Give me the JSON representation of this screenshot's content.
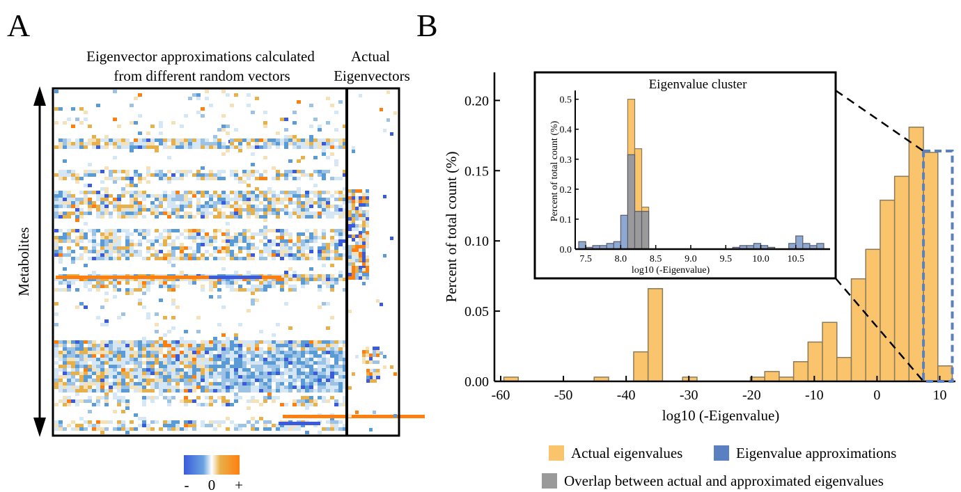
{
  "panel_a": {
    "letter": "A",
    "title_line1": "Eigenvector approximations calculated",
    "title_line2": "from different random vectors",
    "actual_line1": "Actual",
    "actual_line2": "Eigenvectors",
    "y_label": "Metabolites",
    "colorbar_minus": "-",
    "colorbar_zero": "0",
    "colorbar_plus": "+",
    "colors": {
      "negative": "#3b5bdb",
      "zero": "#ffffff",
      "positive": "#ff7f0e",
      "light_blue": "#5a9bd5",
      "light_orange": "#e8b04a"
    }
  },
  "panel_b": {
    "letter": "B",
    "legend": {
      "actual": "Actual eigenvalues",
      "approx": "Eigenvalue approximations",
      "overlap": "Overlap between actual and approximated eigenvalues"
    },
    "colors": {
      "actual": "#f9c46b",
      "approx": "#8ea9d1",
      "overlap": "#9a9a9a",
      "dashed": "#5b80c1"
    }
  },
  "chart_data": [
    {
      "type": "bar",
      "xlabel": "log10 (-Eigenvalue)",
      "ylabel": "Percent of total count (%)",
      "xlim": [
        -61,
        12.5
      ],
      "ylim": [
        0,
        0.22
      ],
      "xticks": [
        -60,
        -50,
        -40,
        -30,
        -20,
        -10,
        0,
        10
      ],
      "yticks": [
        "0.00",
        "0.05",
        "0.10",
        "0.15",
        "0.20"
      ],
      "bin_width": 2.3,
      "series": [
        {
          "name": "Actual eigenvalues",
          "bins": [
            {
              "x0": -59.5,
              "value": 0.003
            },
            {
              "x0": -45.1,
              "value": 0.003
            },
            {
              "x0": -38.8,
              "value": 0.021
            },
            {
              "x0": -36.5,
              "value": 0.066
            },
            {
              "x0": -31.0,
              "value": 0.003
            },
            {
              "x0": -20.2,
              "value": 0.003
            },
            {
              "x0": -17.9,
              "value": 0.007
            },
            {
              "x0": -15.6,
              "value": 0.003
            },
            {
              "x0": -13.3,
              "value": 0.014
            },
            {
              "x0": -11.0,
              "value": 0.028
            },
            {
              "x0": -8.7,
              "value": 0.042
            },
            {
              "x0": -6.4,
              "value": 0.017
            },
            {
              "x0": -4.1,
              "value": 0.073
            },
            {
              "x0": -1.8,
              "value": 0.094
            },
            {
              "x0": 0.5,
              "value": 0.129
            },
            {
              "x0": 2.8,
              "value": 0.146
            },
            {
              "x0": 5.1,
              "value": 0.181
            },
            {
              "x0": 7.4,
              "value": 0.163
            },
            {
              "x0": 9.7,
              "value": 0.011
            }
          ]
        }
      ],
      "highlight_region": [
        7.4,
        12.0
      ]
    },
    {
      "type": "bar",
      "title": "Eigenvalue cluster",
      "xlabel": "log10 (-Eigenvalue)",
      "ylabel": "Percent of total count (%)",
      "xlim": [
        7.35,
        10.95
      ],
      "ylim": [
        0,
        0.52
      ],
      "xticks": [
        "7.5",
        "8.0",
        "8.5",
        "9.0",
        "9.5",
        "10.0",
        "10.5"
      ],
      "yticks": [
        "0.0",
        "0.1",
        "0.2",
        "0.3",
        "0.4",
        "0.5"
      ],
      "bin_width": 0.1,
      "series": [
        {
          "name": "Actual eigenvalues",
          "bins": [
            {
              "x0": 8.1,
              "value": 0.5
            },
            {
              "x0": 8.2,
              "value": 0.335
            },
            {
              "x0": 8.3,
              "value": 0.14
            }
          ]
        },
        {
          "name": "Eigenvalue approximations",
          "bins": [
            {
              "x0": 7.4,
              "value": 0.025
            },
            {
              "x0": 7.5,
              "value": 0.006
            },
            {
              "x0": 7.6,
              "value": 0.012
            },
            {
              "x0": 7.7,
              "value": 0.012
            },
            {
              "x0": 7.8,
              "value": 0.019
            },
            {
              "x0": 7.9,
              "value": 0.025
            },
            {
              "x0": 8.0,
              "value": 0.113
            },
            {
              "x0": 8.1,
              "value": 0.315
            },
            {
              "x0": 8.2,
              "value": 0.126
            },
            {
              "x0": 8.3,
              "value": 0.126
            },
            {
              "x0": 9.6,
              "value": 0.006
            },
            {
              "x0": 9.7,
              "value": 0.012
            },
            {
              "x0": 9.8,
              "value": 0.012
            },
            {
              "x0": 9.9,
              "value": 0.019
            },
            {
              "x0": 10.0,
              "value": 0.012
            },
            {
              "x0": 10.1,
              "value": 0.006
            },
            {
              "x0": 10.4,
              "value": 0.019
            },
            {
              "x0": 10.5,
              "value": 0.044
            },
            {
              "x0": 10.6,
              "value": 0.019
            },
            {
              "x0": 10.7,
              "value": 0.012
            },
            {
              "x0": 10.8,
              "value": 0.019
            }
          ]
        }
      ]
    }
  ]
}
